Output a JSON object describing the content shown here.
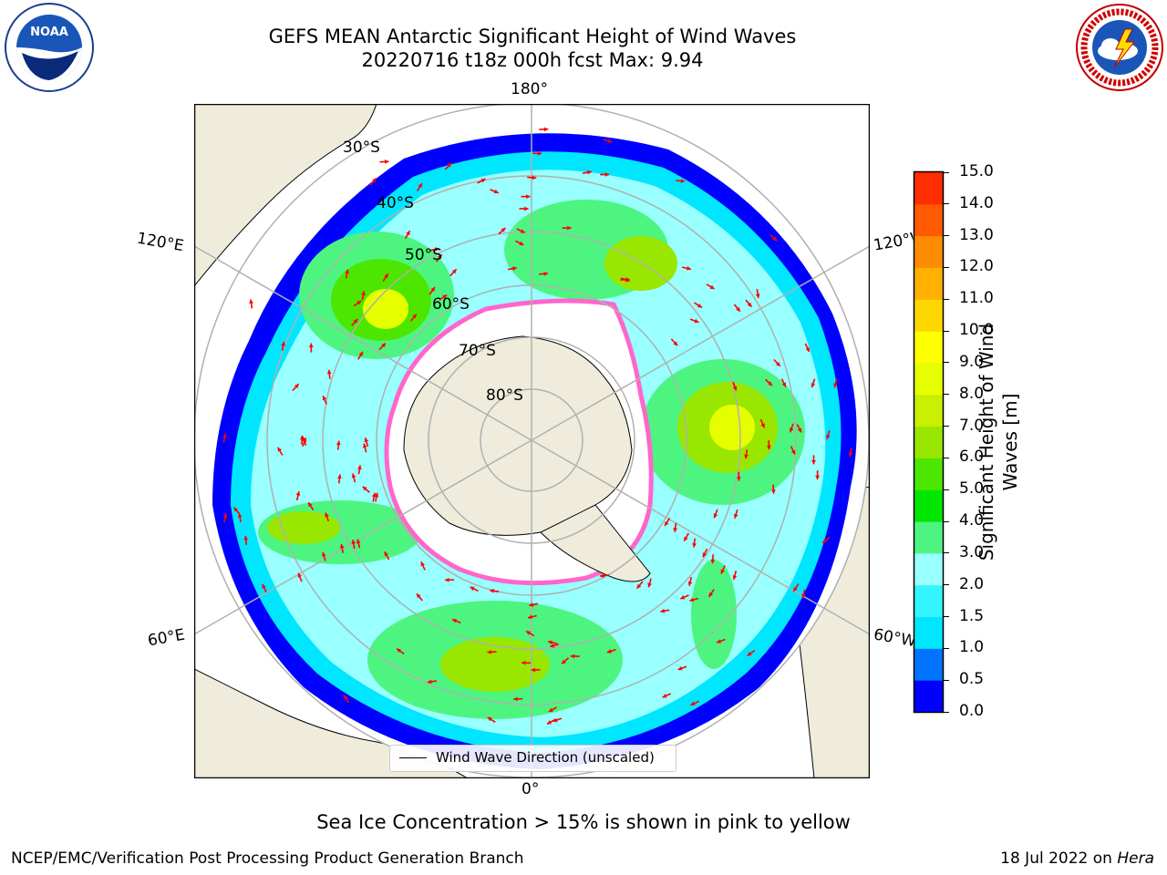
{
  "title": {
    "line1": "GEFS MEAN Antarctic Significant Height of Wind Waves",
    "line2": "20220716 t18z 000h fcst   Max: 9.94"
  },
  "logos": {
    "left": "noaa-logo",
    "left_text": "NOAA",
    "right": "nws-logo",
    "right_text": "NATIONAL WEATHER SERVICE"
  },
  "map": {
    "projection": "south-polar-stereographic",
    "meridian_labels": {
      "top": "180°",
      "bottom": "0°",
      "left_upper": "120°E",
      "left_lower": "60°E",
      "right_upper": "120°W",
      "right_lower": "60°W"
    },
    "latitude_labels": [
      "30°S",
      "40°S",
      "50°S",
      "60°S",
      "70°S",
      "80°S"
    ],
    "legend": "Wind Wave Direction (unscaled)",
    "colors": {
      "land": "#efecdc",
      "sea_ice": "#ff66cc",
      "arrows": "#ff0000",
      "grid": "#b0b0b0"
    }
  },
  "colorbar": {
    "label": "Significant Height of Wind Waves [m]",
    "label_line1": "Significant Height of Wind",
    "label_line2": "Waves [m]",
    "ticks": [
      "0.0",
      "0.5",
      "1.0",
      "1.5",
      "2.0",
      "3.0",
      "4.0",
      "5.0",
      "6.0",
      "7.0",
      "8.0",
      "9.0",
      "10.0",
      "11.0",
      "12.0",
      "13.0",
      "14.0",
      "15.0"
    ],
    "colors": [
      "#0000ff",
      "#0073ff",
      "#00e6ff",
      "#33f5ff",
      "#99ffff",
      "#4df580",
      "#00e600",
      "#4de600",
      "#99e600",
      "#c8f000",
      "#e6ff00",
      "#ffff00",
      "#ffd700",
      "#ffb000",
      "#ff8c00",
      "#ff5a00",
      "#ff2d00"
    ]
  },
  "notes": {
    "ice": "Sea Ice Concentration > 15% is shown in pink to yellow"
  },
  "footer": {
    "left": "NCEP/EMC/Verification Post Processing Product Generation Branch",
    "right_date": "18 Jul 2022 on ",
    "right_host": "Hera"
  }
}
